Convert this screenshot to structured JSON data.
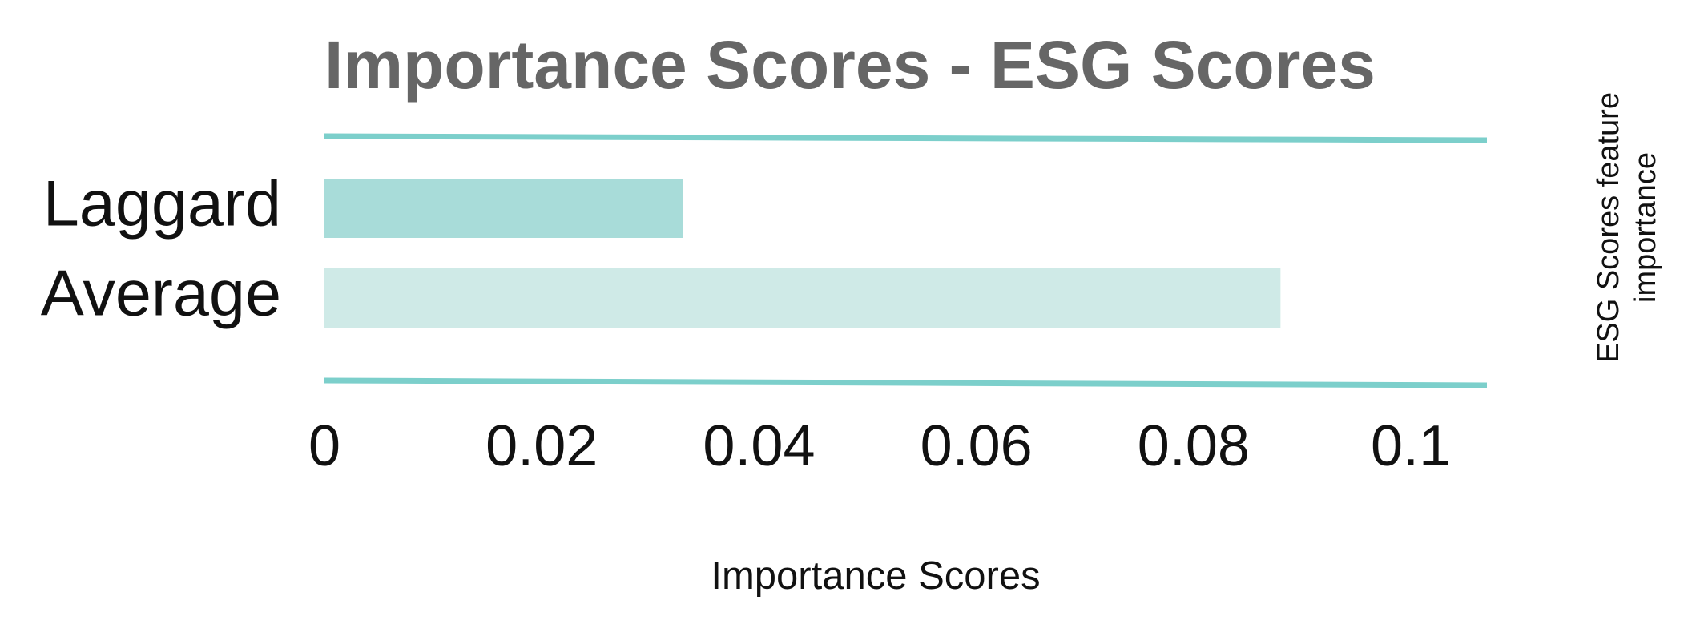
{
  "chart_data": {
    "type": "hbar",
    "title": "Importance Scores - ESG Scores",
    "categories": [
      "Laggard",
      "Average"
    ],
    "values": [
      0.033,
      0.088
    ],
    "colors": [
      "#a8dcd9",
      "#cfeae7"
    ],
    "xlabel": "Importance Scores",
    "side_title": [
      "ESG Scores feature",
      "importance"
    ],
    "xlim": [
      0,
      0.107
    ],
    "xticks": [
      0,
      0.02,
      0.04,
      0.06,
      0.08,
      0.1
    ],
    "grid": false
  }
}
